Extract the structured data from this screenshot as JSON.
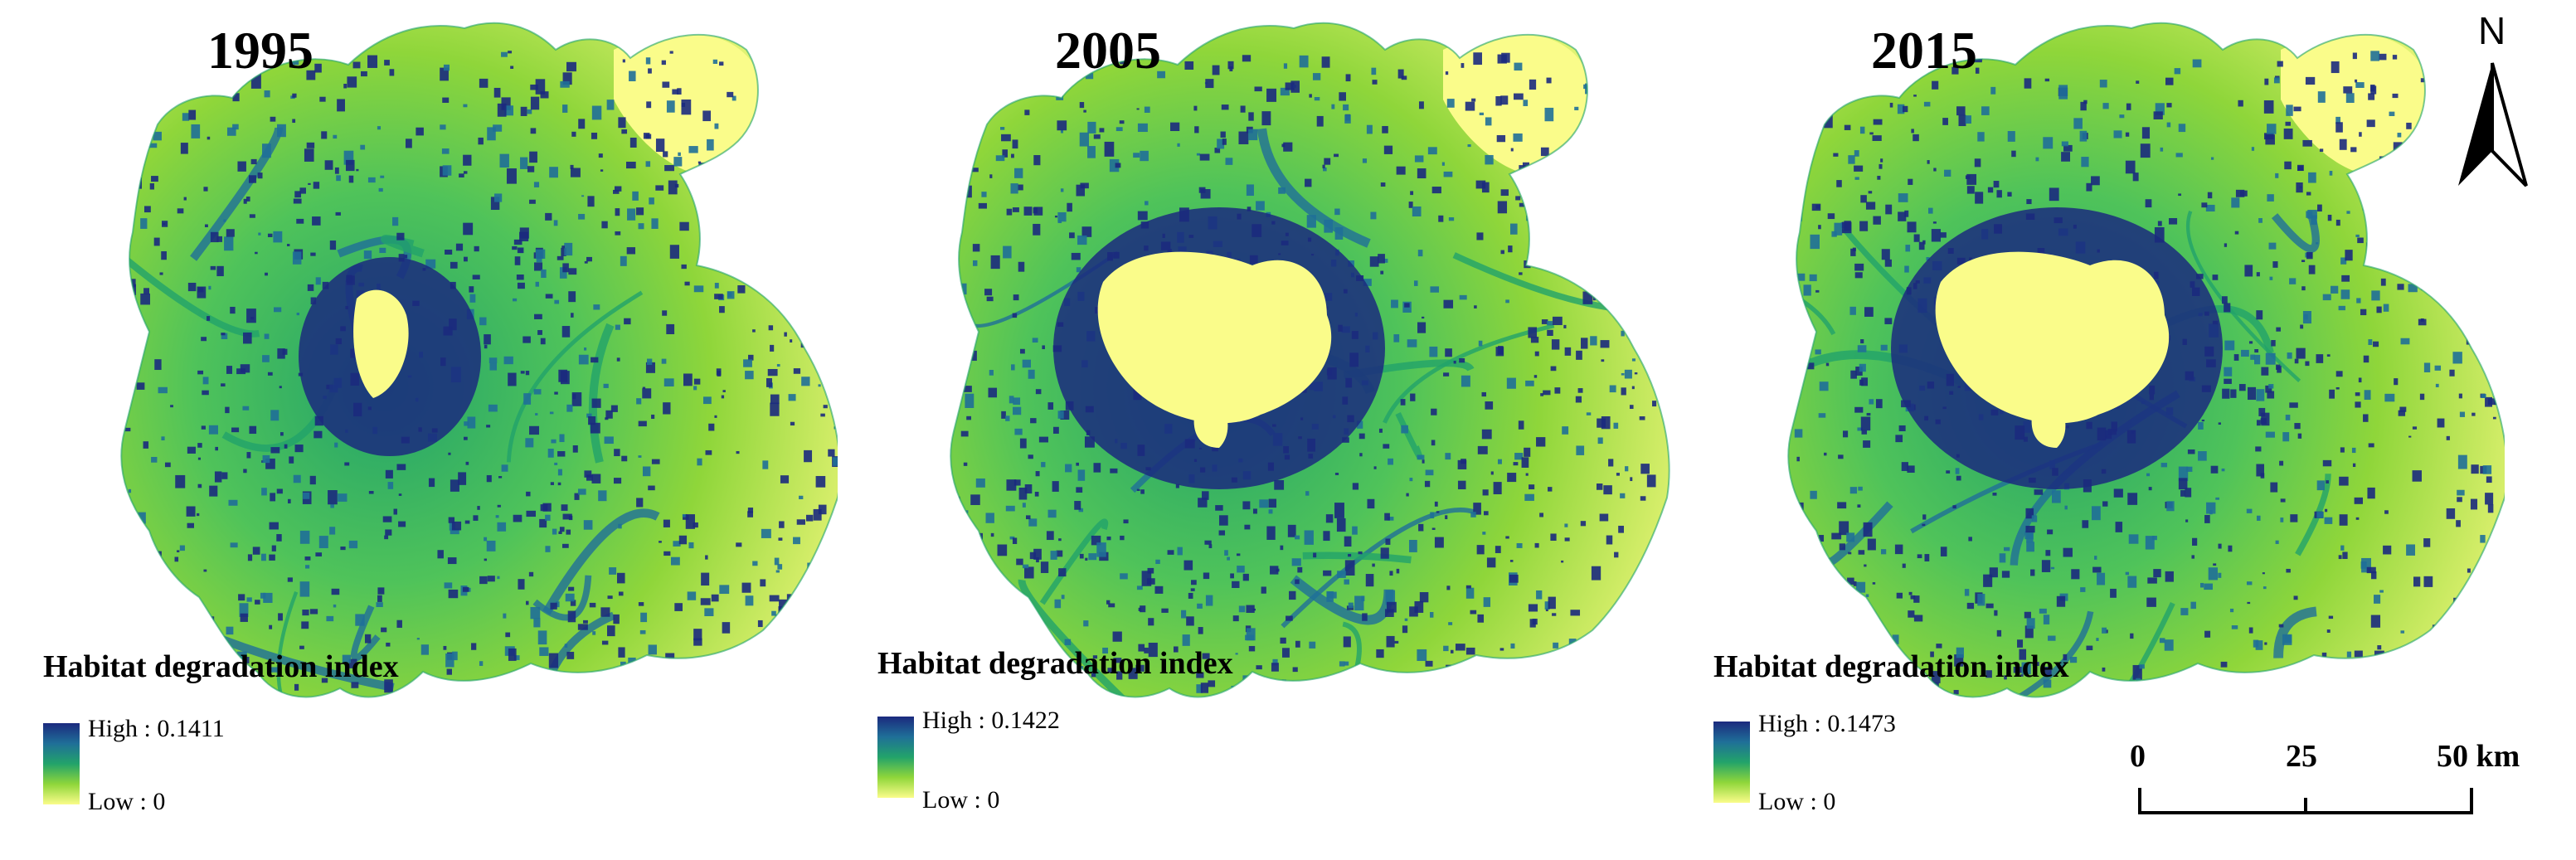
{
  "panels": [
    {
      "year": "1995",
      "legend_title": "Habitat degradation index",
      "high_label": "High : 0.1411",
      "low_label": "Low : 0",
      "urban_core_extent": "small"
    },
    {
      "year": "2005",
      "legend_title": "Habitat degradation index",
      "high_label": "High : 0.1422",
      "low_label": "Low : 0",
      "urban_core_extent": "large"
    },
    {
      "year": "2015",
      "legend_title": "Habitat degradation index",
      "high_label": "High : 0.1473",
      "low_label": "Low : 0",
      "urban_core_extent": "large"
    }
  ],
  "north_arrow": {
    "letter": "N"
  },
  "scale_bar": {
    "ticks": [
      "0",
      "25",
      "50 km"
    ]
  },
  "colors": {
    "high": "#1b2a7e",
    "mid_high": "#1f6f98",
    "mid": "#22a36a",
    "mid_low": "#8fd63a",
    "low": "#fafc8a",
    "water": "#3a9fd0"
  }
}
